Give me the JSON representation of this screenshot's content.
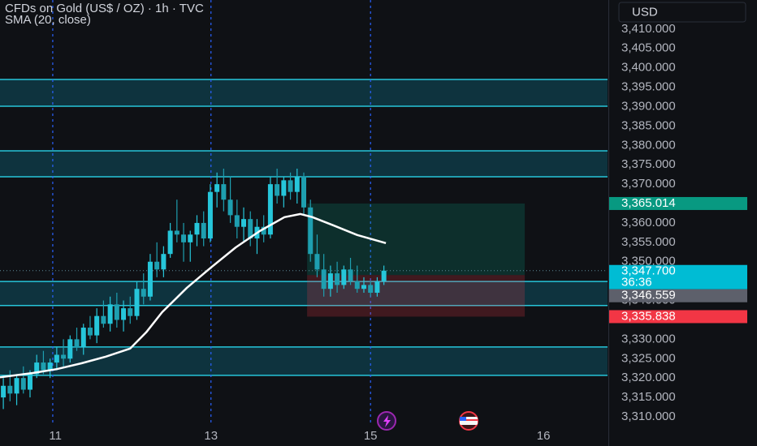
{
  "chart_data": {
    "type": "candlestick",
    "title": "CFDs on Gold (US$ / OZ) · 1h · TVC",
    "currency": "USD",
    "xlim": [
      0,
      91
    ],
    "ylim": [
      3307.7,
      3417.5
    ],
    "grid": false,
    "xticks": [
      {
        "value": 8.3,
        "label": "11"
      },
      {
        "value": 31.6,
        "label": "13"
      },
      {
        "value": 55.5,
        "label": "15"
      },
      {
        "value": 81.4,
        "label": "16"
      }
    ],
    "vlines": [
      7.9,
      31.6,
      55.5
    ],
    "yticks": [
      {
        "value": 3310,
        "label": "3,310.000"
      },
      {
        "value": 3315,
        "label": "3,315.000"
      },
      {
        "value": 3320,
        "label": "3,320.000"
      },
      {
        "value": 3325,
        "label": "3,325.000"
      },
      {
        "value": 3330,
        "label": "3,330.000"
      },
      {
        "value": 3340,
        "label": "3,340.000"
      },
      {
        "value": 3350,
        "label": "3,350.000"
      },
      {
        "value": 3355,
        "label": "3,355.000"
      },
      {
        "value": 3360,
        "label": "3,360.000"
      },
      {
        "value": 3370,
        "label": "3,370.000"
      },
      {
        "value": 3375,
        "label": "3,375.000"
      },
      {
        "value": 3380,
        "label": "3,380.000"
      },
      {
        "value": 3385,
        "label": "3,385.000"
      },
      {
        "value": 3390,
        "label": "3,390.000"
      },
      {
        "value": 3395,
        "label": "3,395.000"
      },
      {
        "value": 3400,
        "label": "3,400.000"
      },
      {
        "value": 3405,
        "label": "3,405.000"
      },
      {
        "value": 3410,
        "label": "3,410.000"
      }
    ],
    "up_color": "#26c6da",
    "down_color": "#1e9fb0",
    "candles": {
      "x": [
        0.5,
        1.5,
        2.5,
        3.5,
        4.5,
        5.5,
        6.5,
        7.5,
        8.5,
        9.5,
        10.5,
        11.5,
        12.5,
        13.5,
        14.5,
        15.5,
        16.5,
        17.5,
        18.5,
        19.5,
        20.5,
        21.5,
        22.5,
        23.5,
        24.5,
        25.5,
        26.5,
        27.5,
        28.5,
        29.5,
        30.5,
        31.5,
        32.5,
        33.5,
        34.5,
        35.5,
        36.5,
        37.5,
        38.5,
        39.5,
        40.5,
        41.5,
        42.5,
        43.5,
        44.5,
        45.5,
        46.5,
        47.5,
        48.5,
        49.5,
        50.5,
        51.5,
        52.5,
        53.5,
        54.5,
        55.5,
        56.5,
        57.5
      ],
      "open": [
        3315,
        3318,
        3316,
        3320,
        3317,
        3321,
        3324,
        3322,
        3324,
        3326,
        3325,
        3330,
        3328,
        3333,
        3331,
        3336,
        3334,
        3339,
        3335,
        3338,
        3336,
        3343,
        3341,
        3350,
        3348,
        3352,
        3358,
        3357,
        3355,
        3357,
        3360,
        3356,
        3368,
        3370,
        3366,
        3362,
        3359,
        3361,
        3356,
        3359,
        3357,
        3370,
        3367,
        3371,
        3368,
        3372,
        3364,
        3352,
        3348,
        3343,
        3347,
        3344,
        3348,
        3345,
        3343,
        3344,
        3342,
        3345
      ],
      "high": [
        3320,
        3322,
        3321,
        3323,
        3322,
        3326,
        3327,
        3325,
        3328,
        3330,
        3331,
        3333,
        3334,
        3336,
        3338,
        3340,
        3341,
        3342,
        3340,
        3341,
        3345,
        3347,
        3352,
        3355,
        3354,
        3360,
        3366,
        3360,
        3358,
        3362,
        3363,
        3370,
        3373,
        3374,
        3372,
        3366,
        3364,
        3363,
        3361,
        3362,
        3372,
        3374,
        3372,
        3373,
        3374,
        3373,
        3366,
        3357,
        3352,
        3349,
        3350,
        3349,
        3351,
        3349,
        3346,
        3345,
        3346,
        3349
      ],
      "low": [
        3312,
        3314,
        3313,
        3316,
        3315,
        3320,
        3321,
        3320,
        3322,
        3323,
        3324,
        3327,
        3326,
        3330,
        3329,
        3333,
        3332,
        3333,
        3332,
        3334,
        3335,
        3339,
        3340,
        3346,
        3346,
        3351,
        3355,
        3350,
        3350,
        3354,
        3354,
        3355,
        3364,
        3363,
        3360,
        3356,
        3355,
        3354,
        3352,
        3355,
        3356,
        3365,
        3364,
        3366,
        3365,
        3362,
        3350,
        3346,
        3341,
        3341,
        3342,
        3343,
        3344,
        3342,
        3342,
        3341,
        3341,
        3344
      ],
      "close": [
        3318,
        3316,
        3320,
        3317,
        3321,
        3324,
        3322,
        3324,
        3326,
        3325,
        3330,
        3328,
        3333,
        3331,
        3336,
        3334,
        3339,
        3335,
        3338,
        3336,
        3343,
        3341,
        3350,
        3348,
        3352,
        3358,
        3357,
        3355,
        3357,
        3360,
        3356,
        3368,
        3370,
        3366,
        3362,
        3359,
        3361,
        3356,
        3359,
        3357,
        3370,
        3367,
        3371,
        3368,
        3372,
        3364,
        3352,
        3348,
        3343,
        3347,
        3344,
        3348,
        3345,
        3343,
        3344,
        3342,
        3345,
        3347.7
      ]
    },
    "sma": {
      "name": "SMA (20, close)",
      "color": "#ffffff",
      "x": [
        0,
        4.9,
        8.5,
        12.2,
        15.8,
        19.5,
        21.9,
        24.3,
        28,
        31.6,
        35.3,
        38.9,
        42.6,
        45,
        46.8,
        49.9,
        53.5,
        57.8
      ],
      "values": [
        3320.2,
        3321.3,
        3322.3,
        3323.8,
        3325.5,
        3327.6,
        3331.8,
        3337.0,
        3343.3,
        3348.5,
        3353.7,
        3357.9,
        3361.5,
        3362.3,
        3361.5,
        3359.4,
        3356.9,
        3354.8
      ]
    },
    "zones": [
      {
        "low": 3390.1,
        "high": 3397.0
      },
      {
        "low": 3371.9,
        "high": 3378.6
      },
      {
        "low": 3338.7,
        "high": 3344.9
      },
      {
        "low": 3320.7,
        "high": 3328.0
      }
    ],
    "position": {
      "x_start": 46.0,
      "x_end": 78.6,
      "target": 3365.014,
      "entry": 3346.559,
      "stop": 3335.838
    },
    "last_price": 3347.7,
    "price_labels": [
      {
        "value": 3365.014,
        "label": "3,365.014",
        "color": "#089981"
      },
      {
        "value": 3347.7,
        "label": "3,347.700",
        "sub": "36:36",
        "color": "#00bcd4"
      },
      {
        "value": 3346.559,
        "label": "3,346.559",
        "color": "#5d606b"
      },
      {
        "value": 3335.838,
        "label": "3,335.838",
        "color": "#f23645"
      }
    ]
  }
}
